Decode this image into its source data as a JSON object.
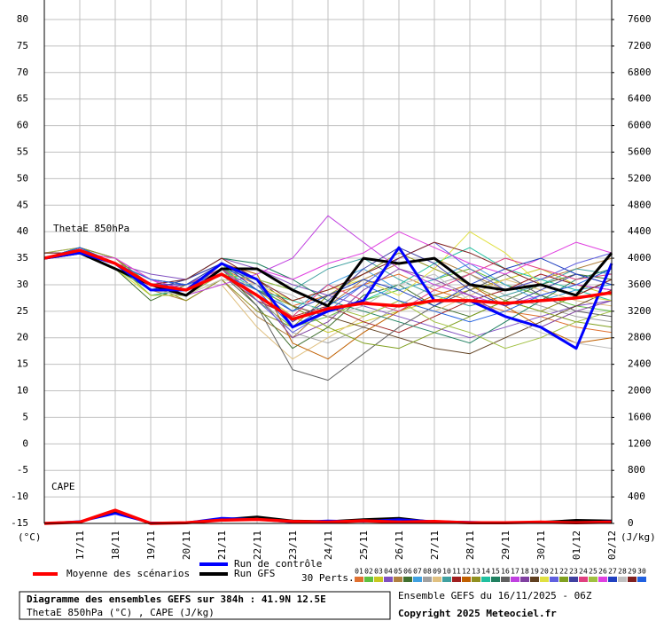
{
  "chart_data": {
    "type": "line",
    "title": "Diagramme des ensembles GEFS sur 384h : 41.9N 12.5E",
    "subtitle": "ThetaE 850hPa (°C) , CAPE (J/kg)",
    "run_info": "Ensemble GEFS du 16/11/2025 - 06Z",
    "copyright": "Copyright 2025 Meteociel.fr",
    "annotations": [
      "ThetaE 850hPa",
      "CAPE"
    ],
    "ylabel": "(°C)",
    "y2label": "(J/kg)",
    "perturbations_label": "30 Perts.",
    "grid": true,
    "x": [
      0,
      24,
      48,
      72,
      96,
      120,
      144,
      168,
      192,
      216,
      240,
      264,
      288,
      312,
      336,
      360,
      384
    ],
    "xlim": [
      0,
      384
    ],
    "xticks": [
      {
        "value": 24,
        "label": "17/11"
      },
      {
        "value": 48,
        "label": "18/11"
      },
      {
        "value": 72,
        "label": "19/11"
      },
      {
        "value": 96,
        "label": "20/11"
      },
      {
        "value": 120,
        "label": "21/11"
      },
      {
        "value": 144,
        "label": "22/11"
      },
      {
        "value": 168,
        "label": "23/11"
      },
      {
        "value": 192,
        "label": "24/11"
      },
      {
        "value": 216,
        "label": "25/11"
      },
      {
        "value": 240,
        "label": "26/11"
      },
      {
        "value": 264,
        "label": "27/11"
      },
      {
        "value": 288,
        "label": "28/11"
      },
      {
        "value": 312,
        "label": "29/11"
      },
      {
        "value": 336,
        "label": "30/11"
      },
      {
        "value": 360,
        "label": "01/12"
      },
      {
        "value": 384,
        "label": "02/12"
      }
    ],
    "ylim": [
      -15,
      80
    ],
    "yticks": [
      -15,
      -10,
      -5,
      0,
      5,
      10,
      15,
      20,
      25,
      30,
      35,
      40,
      45,
      50,
      55,
      60,
      65,
      70,
      75,
      80
    ],
    "y2lim": [
      0,
      7600
    ],
    "y2ticks": [
      0,
      400,
      800,
      1200,
      1600,
      2000,
      2400,
      2800,
      3200,
      3600,
      4000,
      4400,
      4800,
      5200,
      5600,
      6000,
      6400,
      6800,
      7200,
      7600
    ],
    "main_series": [
      {
        "name": "Moyenne des scénarios",
        "color": "#ff0000",
        "values": [
          35,
          36.5,
          34,
          30,
          29,
          32,
          28,
          23.5,
          25.5,
          26.5,
          26,
          27,
          27,
          26.5,
          27,
          27.5,
          28.5
        ],
        "cape": [
          0,
          20,
          200,
          0,
          10,
          50,
          60,
          30,
          20,
          40,
          20,
          30,
          10,
          10,
          20,
          10,
          20
        ]
      },
      {
        "name": "Run de contrôle",
        "color": "#0000ff",
        "values": [
          35,
          36,
          34,
          29,
          29,
          34,
          31,
          22,
          25,
          27,
          37,
          27,
          27,
          24,
          22,
          18,
          34
        ],
        "cape": [
          0,
          30,
          150,
          10,
          10,
          80,
          60,
          20,
          40,
          30,
          60,
          30,
          20,
          10,
          20,
          10,
          30
        ]
      },
      {
        "name": "Run GFS",
        "color": "#000000",
        "values": [
          35,
          36,
          33,
          30,
          28,
          33,
          33,
          29,
          26,
          35,
          34,
          35,
          30,
          29,
          30,
          28,
          36
        ],
        "cape": [
          0,
          20,
          180,
          0,
          10,
          60,
          100,
          40,
          30,
          60,
          80,
          20,
          10,
          10,
          20,
          50,
          40
        ]
      }
    ],
    "series": [
      {
        "name": "01",
        "color": "#e07030",
        "values": [
          35,
          36,
          34,
          31,
          30,
          33,
          30,
          26,
          28,
          30,
          32,
          29,
          27,
          25,
          24,
          22,
          21
        ]
      },
      {
        "name": "02",
        "color": "#60c040",
        "values": [
          35,
          37,
          35,
          30,
          28,
          34,
          27,
          22,
          24,
          27,
          29,
          31,
          33,
          30,
          28,
          26,
          25
        ]
      },
      {
        "name": "03",
        "color": "#c8c820",
        "values": [
          36,
          36,
          33,
          28,
          29,
          32,
          29,
          24,
          21,
          23,
          25,
          27,
          29,
          31,
          33,
          30,
          28
        ]
      },
      {
        "name": "04",
        "color": "#8050c0",
        "values": [
          35,
          36,
          34,
          32,
          31,
          35,
          33,
          30,
          28,
          26,
          24,
          22,
          20,
          22,
          24,
          26,
          27
        ]
      },
      {
        "name": "05",
        "color": "#b08040",
        "values": [
          35,
          37,
          35,
          29,
          27,
          31,
          24,
          20,
          26,
          31,
          34,
          35,
          32,
          29,
          31,
          33,
          35
        ]
      },
      {
        "name": "06",
        "color": "#407030",
        "values": [
          36,
          36,
          33,
          27,
          30,
          33,
          26,
          18,
          22,
          28,
          30,
          26,
          24,
          27,
          30,
          32,
          31
        ]
      },
      {
        "name": "07",
        "color": "#40a0e0",
        "values": [
          35,
          36,
          34,
          30,
          31,
          34,
          30,
          25,
          30,
          33,
          29,
          31,
          34,
          30,
          27,
          29,
          30
        ]
      },
      {
        "name": "08",
        "color": "#a0a0a0",
        "values": [
          35,
          37,
          35,
          31,
          29,
          32,
          28,
          21,
          19,
          22,
          26,
          30,
          32,
          28,
          26,
          24,
          23
        ]
      },
      {
        "name": "09",
        "color": "#e0c080",
        "values": [
          36,
          36,
          34,
          28,
          28,
          30,
          22,
          16,
          20,
          24,
          27,
          25,
          28,
          31,
          29,
          27,
          26
        ]
      },
      {
        "name": "10",
        "color": "#40a0a0",
        "values": [
          35,
          36,
          33,
          30,
          30,
          33,
          31,
          29,
          33,
          35,
          31,
          28,
          26,
          28,
          30,
          33,
          32
        ]
      },
      {
        "name": "11",
        "color": "#a02020",
        "values": [
          35,
          37,
          34,
          29,
          28,
          32,
          27,
          24,
          26,
          23,
          21,
          24,
          27,
          29,
          32,
          30,
          29
        ]
      },
      {
        "name": "12",
        "color": "#c06000",
        "values": [
          35,
          36,
          35,
          31,
          30,
          34,
          32,
          19,
          16,
          21,
          25,
          28,
          30,
          26,
          22,
          19,
          20
        ]
      },
      {
        "name": "13",
        "color": "#909020",
        "values": [
          36,
          36,
          34,
          30,
          27,
          31,
          25,
          22,
          28,
          32,
          36,
          33,
          30,
          27,
          25,
          28,
          31
        ]
      },
      {
        "name": "14",
        "color": "#20c0a0",
        "values": [
          35,
          37,
          34,
          28,
          29,
          33,
          29,
          27,
          25,
          27,
          30,
          34,
          37,
          33,
          31,
          29,
          27
        ]
      },
      {
        "name": "15",
        "color": "#208060",
        "values": [
          35,
          36,
          33,
          29,
          31,
          35,
          34,
          31,
          27,
          25,
          23,
          21,
          19,
          23,
          27,
          31,
          33
        ]
      },
      {
        "name": "16",
        "color": "#606060",
        "values": [
          35,
          36,
          34,
          30,
          30,
          32,
          26,
          14,
          12,
          17,
          22,
          26,
          29,
          32,
          28,
          25,
          24
        ]
      },
      {
        "name": "17",
        "color": "#c040e0",
        "values": [
          36,
          37,
          35,
          31,
          28,
          30,
          32,
          35,
          43,
          38,
          33,
          30,
          28,
          26,
          28,
          30,
          29
        ]
      },
      {
        "name": "18",
        "color": "#8040a0",
        "values": [
          35,
          36,
          34,
          29,
          30,
          33,
          28,
          20,
          23,
          29,
          33,
          31,
          28,
          24,
          22,
          25,
          27
        ]
      },
      {
        "name": "19",
        "color": "#604020",
        "values": [
          35,
          37,
          34,
          30,
          29,
          34,
          31,
          26,
          24,
          22,
          20,
          18,
          17,
          20,
          23,
          26,
          29
        ]
      },
      {
        "name": "20",
        "color": "#e0e040",
        "values": [
          35,
          36,
          33,
          28,
          28,
          31,
          30,
          27,
          29,
          31,
          28,
          33,
          40,
          36,
          30,
          28,
          27
        ]
      },
      {
        "name": "21",
        "color": "#6060e0",
        "values": [
          36,
          36,
          34,
          31,
          30,
          33,
          27,
          21,
          25,
          30,
          35,
          38,
          33,
          29,
          31,
          34,
          36
        ]
      },
      {
        "name": "22",
        "color": "#80a020",
        "values": [
          35,
          37,
          35,
          30,
          29,
          32,
          29,
          26,
          22,
          19,
          18,
          21,
          24,
          27,
          25,
          23,
          22
        ]
      },
      {
        "name": "23",
        "color": "#4040a0",
        "values": [
          35,
          36,
          34,
          29,
          31,
          34,
          30,
          23,
          27,
          33,
          37,
          34,
          29,
          26,
          29,
          32,
          30
        ]
      },
      {
        "name": "24",
        "color": "#e04080",
        "values": [
          35,
          36,
          33,
          30,
          30,
          33,
          28,
          24,
          30,
          27,
          25,
          29,
          32,
          35,
          33,
          31,
          32
        ]
      },
      {
        "name": "25",
        "color": "#a0c040",
        "values": [
          36,
          37,
          34,
          28,
          28,
          32,
          31,
          29,
          26,
          24,
          27,
          23,
          21,
          18,
          20,
          23,
          25
        ]
      },
      {
        "name": "26",
        "color": "#e040e0",
        "values": [
          35,
          36,
          35,
          31,
          29,
          33,
          33,
          31,
          34,
          36,
          40,
          37,
          34,
          32,
          35,
          38,
          36
        ]
      },
      {
        "name": "27",
        "color": "#2040c0",
        "values": [
          35,
          37,
          34,
          30,
          30,
          34,
          29,
          25,
          28,
          31,
          29,
          26,
          30,
          33,
          35,
          32,
          30
        ]
      },
      {
        "name": "28",
        "color": "#c0c0c0",
        "values": [
          35,
          36,
          34,
          29,
          28,
          31,
          30,
          28,
          24,
          26,
          30,
          32,
          27,
          24,
          21,
          19,
          18
        ]
      },
      {
        "name": "29",
        "color": "#802020",
        "values": [
          36,
          36,
          33,
          30,
          31,
          35,
          31,
          27,
          29,
          32,
          35,
          38,
          36,
          33,
          30,
          28,
          31
        ]
      },
      {
        "name": "30",
        "color": "#2060e0",
        "values": [
          35,
          37,
          34,
          31,
          30,
          32,
          29,
          22,
          26,
          30,
          27,
          25,
          23,
          25,
          28,
          30,
          33
        ]
      }
    ]
  }
}
